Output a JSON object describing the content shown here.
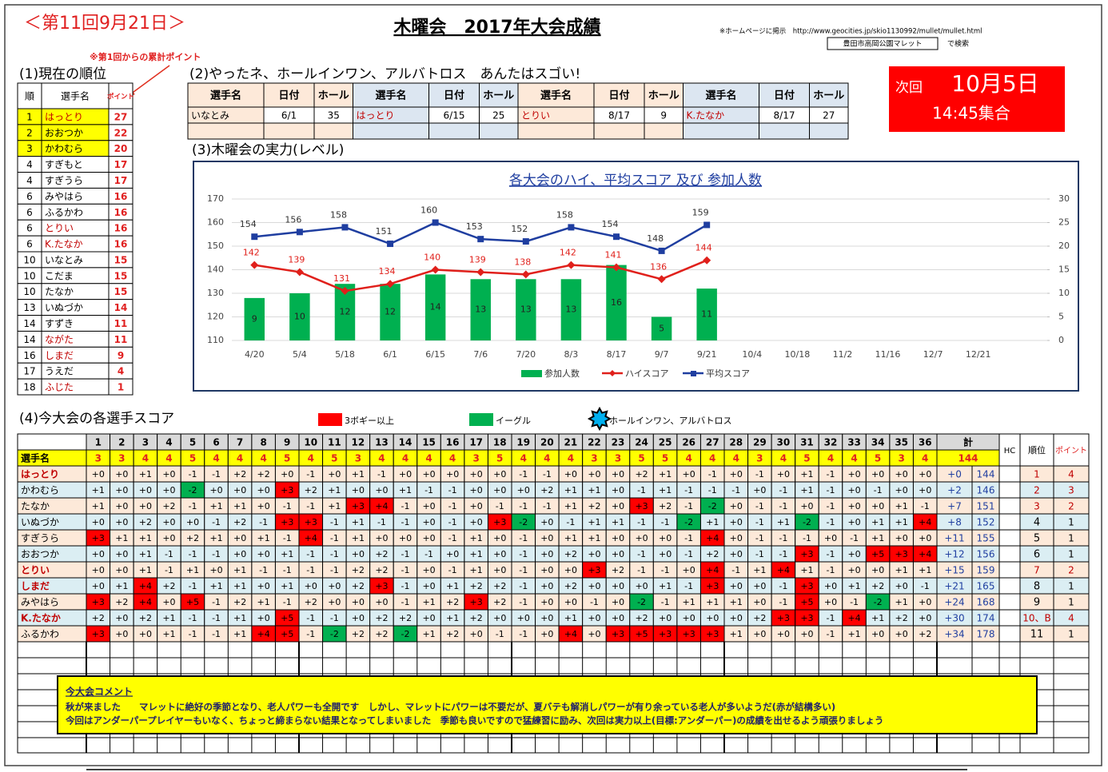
{
  "header": {
    "round": "＜第11回9月21日＞",
    "title": "木曜会　2017年大会成績",
    "notice": "※ホームページに掲示　http://www.geocities.jp/skio1130992/mullet/mullet.html",
    "search_box": "豊田市高岡公園マレット",
    "search_suffix": "で検索"
  },
  "next": {
    "label": "次回",
    "date": "10月5日",
    "time": "14:45集合"
  },
  "ranking": {
    "title": "(1)現在の順位",
    "note": "※第1回からの累計ポイント",
    "columns": [
      "順",
      "選手名",
      "ポイント"
    ],
    "rows": [
      {
        "rank": 1,
        "name": "はっとり",
        "points": 27,
        "color": "#c00000",
        "fill": "#ffff00"
      },
      {
        "rank": 2,
        "name": "おおつか",
        "points": 22,
        "fill": "#ffff00"
      },
      {
        "rank": 3,
        "name": "かわむら",
        "points": 20,
        "fill": "#ffff00"
      },
      {
        "rank": 4,
        "name": "すぎもと",
        "points": 17
      },
      {
        "rank": 4,
        "name": "すぎうら",
        "points": 17
      },
      {
        "rank": 6,
        "name": "みやはら",
        "points": 16
      },
      {
        "rank": 6,
        "name": "ふるかわ",
        "points": 16
      },
      {
        "rank": 6,
        "name": "とりい",
        "points": 16,
        "color": "#c00000"
      },
      {
        "rank": 6,
        "name": "K.たなか",
        "points": 16,
        "color": "#c00000"
      },
      {
        "rank": 10,
        "name": "いなとみ",
        "points": 15
      },
      {
        "rank": 10,
        "name": "こだま",
        "points": 15
      },
      {
        "rank": 10,
        "name": "たなか",
        "points": 15
      },
      {
        "rank": 13,
        "name": "いぬづか",
        "points": 14
      },
      {
        "rank": 14,
        "name": "すずき",
        "points": 11
      },
      {
        "rank": 14,
        "name": "ながた",
        "points": 11,
        "color": "#c00000"
      },
      {
        "rank": 16,
        "name": "しまだ",
        "points": 9,
        "color": "#c00000"
      },
      {
        "rank": 17,
        "name": "うえだ",
        "points": 4
      },
      {
        "rank": 18,
        "name": "ふじた",
        "points": 1,
        "color": "#c00000"
      }
    ]
  },
  "holeinone": {
    "title": "(2)やったネ、ホールインワン、アルバトロス　あんたはスゴい!",
    "columns": [
      "選手名",
      "日付",
      "ホール",
      "選手名",
      "日付",
      "ホール",
      "選手名",
      "日付",
      "ホール",
      "選手名",
      "日付",
      "ホール"
    ],
    "rows": [
      [
        "いなとみ",
        "6/1",
        35,
        "はっとり",
        "6/15",
        25,
        "とりい",
        "8/17",
        9,
        "K.たなか",
        "8/17",
        27
      ]
    ],
    "name_colors": [
      "#000000",
      "#c00000",
      "#c00000",
      "#c00000"
    ]
  },
  "level": {
    "title": "(3)木曜会の実力(レベル)"
  },
  "chart_data": {
    "type": "combo",
    "title": "各大会のハイ、平均スコア 及び  参加人数",
    "categories": [
      "4/20",
      "5/4",
      "5/18",
      "6/1",
      "6/15",
      "7/6",
      "7/20",
      "8/3",
      "8/17",
      "9/7",
      "9/21",
      "10/4",
      "10/18",
      "11/2",
      "11/16",
      "12/7",
      "12/21"
    ],
    "series": [
      {
        "name": "参加人数",
        "type": "bar",
        "axis": "y2",
        "color": "#00b050",
        "values": [
          9,
          10,
          12,
          12,
          14,
          13,
          13,
          13,
          16,
          5,
          11,
          null,
          null,
          null,
          null,
          null,
          null
        ]
      },
      {
        "name": "ハイスコア",
        "type": "line",
        "color": "#e0201b",
        "values": [
          142,
          139,
          131,
          134,
          140,
          139,
          138,
          142,
          141,
          136,
          144,
          null,
          null,
          null,
          null,
          null,
          null
        ]
      },
      {
        "name": "平均スコア",
        "type": "line",
        "color": "#1f3ea0",
        "values": [
          154,
          156,
          158,
          151,
          160,
          153,
          152,
          158,
          154,
          148,
          159,
          null,
          null,
          null,
          null,
          null,
          null
        ]
      }
    ],
    "ylim": [
      110,
      170
    ],
    "yticks": [
      110,
      120,
      130,
      140,
      150,
      160,
      170
    ],
    "y2lim": [
      0,
      30
    ],
    "y2ticks": [
      0,
      5,
      10,
      15,
      20,
      25,
      30
    ],
    "grid": true,
    "legend": "bottom"
  },
  "scores": {
    "title": "(4)今大会の各選手スコア",
    "legend": [
      {
        "label": "3ボギー以上",
        "color": "#ff0000"
      },
      {
        "label": "イーグル",
        "color": "#00b050"
      },
      {
        "label": "ホールインワン、アルバトロス",
        "color": "#00b0f0"
      }
    ],
    "holes": [
      1,
      2,
      3,
      4,
      5,
      6,
      7,
      8,
      9,
      10,
      11,
      12,
      13,
      14,
      15,
      16,
      17,
      18,
      19,
      20,
      21,
      22,
      23,
      24,
      25,
      26,
      27,
      28,
      29,
      30,
      31,
      32,
      33,
      34,
      35,
      36
    ],
    "name_label": "選手名",
    "total_label": "計",
    "hc_label": "HC",
    "rank_label": "順位",
    "points_label": "ポイント",
    "par": [
      3,
      3,
      4,
      4,
      5,
      4,
      4,
      4,
      5,
      4,
      5,
      3,
      4,
      4,
      4,
      4,
      3,
      5,
      4,
      4,
      4,
      3,
      3,
      5,
      5,
      4,
      4,
      4,
      3,
      4,
      5,
      4,
      4,
      5,
      3,
      4
    ],
    "par_total": 144,
    "players": [
      {
        "name": "はっとり",
        "color": "#c00000",
        "scores": [
          "+0",
          "+0",
          "+1",
          "+0",
          "-1",
          "-1",
          "+2",
          "+2",
          "+0",
          "-1",
          "+0",
          "+1",
          "-1",
          "+0",
          "+0",
          "+0",
          "+0",
          "+0",
          "-1",
          "-1",
          "+0",
          "+0",
          "+0",
          "+2",
          "+1",
          "+0",
          "-1",
          "+0",
          "-1",
          "+0",
          "+1",
          "-1",
          "+0",
          "+0",
          "+0",
          "+0"
        ],
        "diff": "+0",
        "total": 144,
        "rank": 1,
        "points": 4,
        "rank_color": "#c00000"
      },
      {
        "name": "かわむら",
        "scores": [
          "+1",
          "+0",
          "+0",
          "+0",
          "-2",
          "+0",
          "+0",
          "+0",
          "+3",
          "+2",
          "+1",
          "+0",
          "+0",
          "+1",
          "-1",
          "-1",
          "+0",
          "+0",
          "+0",
          "+2",
          "+1",
          "+1",
          "+0",
          "-1",
          "+1",
          "-1",
          "-1",
          "-1",
          "+0",
          "-1",
          "+1",
          "-1",
          "+0",
          "-1",
          "+0",
          "+0"
        ],
        "diff": "+2",
        "total": 146,
        "rank": 2,
        "points": 3,
        "rank_color": "#c00000"
      },
      {
        "name": "たなか",
        "scores": [
          "+1",
          "+0",
          "+0",
          "+2",
          "-1",
          "+1",
          "+1",
          "+0",
          "-1",
          "-1",
          "+1",
          "+3",
          "+4",
          "-1",
          "+0",
          "-1",
          "+0",
          "-1",
          "-1",
          "-1",
          "+1",
          "+2",
          "+0",
          "+3",
          "+2",
          "-1",
          "-2",
          "+0",
          "-1",
          "-1",
          "+0",
          "-1",
          "+0",
          "+0",
          "+1",
          "-1"
        ],
        "diff": "+7",
        "total": 151,
        "rank": 3,
        "points": 2,
        "rank_color": "#c00000"
      },
      {
        "name": "いぬづか",
        "scores": [
          "+0",
          "+0",
          "+2",
          "+0",
          "+0",
          "-1",
          "+2",
          "-1",
          "+3",
          "+3",
          "-1",
          "+1",
          "-1",
          "-1",
          "+0",
          "-1",
          "+0",
          "+3",
          "-2",
          "+0",
          "-1",
          "+1",
          "+1",
          "-1",
          "-1",
          "-2",
          "+1",
          "+0",
          "-1",
          "+1",
          "-2",
          "-1",
          "+0",
          "+1",
          "+1",
          "+4"
        ],
        "diff": "+8",
        "total": 152,
        "rank": 4,
        "points": 1
      },
      {
        "name": "すぎうら",
        "scores": [
          "+3",
          "+1",
          "+1",
          "+0",
          "+2",
          "+1",
          "+0",
          "+1",
          "-1",
          "+4",
          "-1",
          "+1",
          "+0",
          "+0",
          "+0",
          "-1",
          "+1",
          "+0",
          "-1",
          "+0",
          "+1",
          "+1",
          "+0",
          "+0",
          "+0",
          "-1",
          "+4",
          "+0",
          "-1",
          "-1",
          "-1",
          "+0",
          "-1",
          "+1",
          "+0",
          "+0"
        ],
        "diff": "+11",
        "total": 155,
        "rank": 5,
        "points": 1
      },
      {
        "name": "おおつか",
        "scores": [
          "+0",
          "+0",
          "+1",
          "-1",
          "-1",
          "-1",
          "+0",
          "+0",
          "+1",
          "-1",
          "-1",
          "+0",
          "+2",
          "-1",
          "-1",
          "+0",
          "+1",
          "+0",
          "-1",
          "+0",
          "+2",
          "+0",
          "+0",
          "-1",
          "+0",
          "-1",
          "+2",
          "+0",
          "-1",
          "-1",
          "+3",
          "-1",
          "+0",
          "+5",
          "+3",
          "+4"
        ],
        "diff": "+12",
        "total": 156,
        "rank": 6,
        "points": 1
      },
      {
        "name": "とりい",
        "color": "#c00000",
        "scores": [
          "+0",
          "+0",
          "+1",
          "-1",
          "+1",
          "+0",
          "+1",
          "-1",
          "-1",
          "-1",
          "-1",
          "+2",
          "+2",
          "-1",
          "+0",
          "-1",
          "+1",
          "+0",
          "-1",
          "+0",
          "+0",
          "+3",
          "+2",
          "-1",
          "-1",
          "+0",
          "+4",
          "-1",
          "+1",
          "+4",
          "+1",
          "-1",
          "+0",
          "+0",
          "+1",
          "+1"
        ],
        "diff": "+15",
        "total": 159,
        "rank": 7,
        "points": 2,
        "rank_color": "#c00000"
      },
      {
        "name": "しまだ",
        "color": "#c00000",
        "scores": [
          "+0",
          "+1",
          "+4",
          "+2",
          "-1",
          "+1",
          "+1",
          "+0",
          "+1",
          "+0",
          "+0",
          "+2",
          "+3",
          "-1",
          "+0",
          "+1",
          "+2",
          "+2",
          "-1",
          "+0",
          "+2",
          "+0",
          "+0",
          "+0",
          "+1",
          "-1",
          "+3",
          "+0",
          "+0",
          "-1",
          "+3",
          "+0",
          "+1",
          "+2",
          "+0",
          "-1"
        ],
        "diff": "+21",
        "total": 165,
        "rank": 8,
        "points": 1
      },
      {
        "name": "みやはら",
        "scores": [
          "+3",
          "+2",
          "+4",
          "+0",
          "+5",
          "-1",
          "+2",
          "+1",
          "-1",
          "+2",
          "+0",
          "+0",
          "+0",
          "-1",
          "+1",
          "+2",
          "+3",
          "+2",
          "-1",
          "+0",
          "+0",
          "-1",
          "+0",
          "-2",
          "-1",
          "+1",
          "+1",
          "+1",
          "+0",
          "-1",
          "+5",
          "+0",
          "-1",
          "-2",
          "+1",
          "+0"
        ],
        "diff": "+24",
        "total": 168,
        "rank": 9,
        "points": 1
      },
      {
        "name": "K.たなか",
        "color": "#c00000",
        "scores": [
          "+2",
          "+0",
          "+2",
          "+1",
          "-1",
          "-1",
          "+1",
          "+0",
          "+5",
          "-1",
          "-1",
          "+0",
          "+2",
          "+2",
          "+0",
          "+1",
          "+2",
          "+0",
          "+0",
          "+0",
          "+1",
          "+0",
          "+0",
          "+2",
          "+0",
          "+0",
          "+0",
          "+0",
          "+2",
          "+3",
          "+3",
          "-1",
          "+4",
          "+1",
          "+2",
          "+0"
        ],
        "diff": "+30",
        "total": 174,
        "rank": "10、B",
        "points": 4,
        "rank_color": "#c00000"
      },
      {
        "name": "ふるかわ",
        "scores": [
          "+3",
          "+0",
          "+0",
          "+1",
          "-1",
          "-1",
          "+1",
          "+4",
          "+5",
          "-1",
          "-2",
          "+2",
          "+2",
          "-2",
          "+1",
          "+2",
          "+0",
          "-1",
          "-1",
          "+0",
          "+4",
          "+0",
          "+3",
          "+5",
          "+3",
          "+3",
          "+3",
          "+1",
          "+0",
          "+0",
          "+0",
          "-1",
          "+1",
          "+0",
          "+0",
          "+2"
        ],
        "diff": "+34",
        "total": 178,
        "rank": 11,
        "points": 1
      }
    ]
  },
  "comment": {
    "title": "今大会コメント",
    "lines": [
      "秋が来ました　　マレットに絶好の季節となり、老人パワーも全開です　しかし、マレットにパワーは不要だが、夏バテも解消しパワーが有り余っている老人が多いようだ(赤が結構多い)",
      "今回はアンダーパープレイヤーもいなく、ちょっと締まらない結果となってしまいました　季節も良いですので猛練習に励み、次回は実力以上(目標:アンダーパー)の成績を出せるよう頑張りましょう"
    ]
  }
}
